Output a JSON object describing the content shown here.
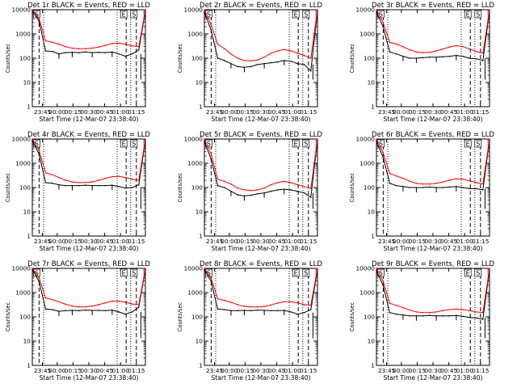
{
  "colors": {
    "events": "#000000",
    "lld": "#ff0000",
    "background": "#ffffff"
  },
  "chart_data": [
    {
      "type": "line",
      "title": "Det 1r BLACK = Events, RED = LLD",
      "xlabel": "Start Time (12-Mar-07 23:38:40)",
      "ylabel": "Counts/sec",
      "xticks": [
        "23:45",
        "00:00",
        "00:15",
        "00:30",
        "00:45",
        "01:00",
        "01:15"
      ],
      "yticks": [
        "1",
        "10",
        "100",
        "1000",
        "10000"
      ],
      "ylim": [
        1,
        10000
      ],
      "yscale": "log",
      "markers": [
        "S",
        "E",
        "S"
      ],
      "series": [
        {
          "name": "Events",
          "color": "#000000",
          "values": [
            9000,
            3500,
            200,
            190,
            150,
            170,
            175,
            170,
            180,
            170,
            175,
            170,
            180,
            150,
            120,
            150,
            220,
            9000
          ]
        },
        {
          "name": "LLD",
          "color": "#ff0000",
          "values": [
            10000,
            4500,
            520,
            460,
            380,
            300,
            260,
            245,
            245,
            260,
            290,
            340,
            400,
            420,
            380,
            320,
            300,
            10000
          ]
        }
      ]
    },
    {
      "type": "line",
      "title": "Det 2r BLACK = Events, RED = LLD",
      "xlabel": "Start Time (12-Mar-07 23:38:40)",
      "ylabel": "Counts/sec",
      "xticks": [
        "23:45",
        "00:00",
        "00:15",
        "00:30",
        "00:45",
        "01:00",
        "01:15"
      ],
      "yticks": [
        "1",
        "10",
        "100",
        "1000",
        "10000"
      ],
      "ylim": [
        1,
        10000
      ],
      "yscale": "log",
      "markers": [
        "S",
        "E",
        "S"
      ],
      "series": [
        {
          "name": "Events",
          "color": "#000000",
          "values": [
            8000,
            1500,
            100,
            80,
            60,
            45,
            42,
            45,
            55,
            60,
            65,
            70,
            80,
            75,
            60,
            55,
            30,
            9000
          ]
        },
        {
          "name": "LLD",
          "color": "#ff0000",
          "values": [
            10000,
            2500,
            380,
            250,
            150,
            100,
            80,
            78,
            85,
            110,
            160,
            200,
            230,
            200,
            160,
            130,
            100,
            10000
          ]
        }
      ]
    },
    {
      "type": "line",
      "title": "Det 3r BLACK = Events, RED = LLD",
      "xlabel": "Start Time (12-Mar-07 23:38:40)",
      "ylabel": "Counts/sec",
      "xticks": [
        "23:45",
        "00:00",
        "00:15",
        "00:30",
        "00:45",
        "01:00",
        "01:15"
      ],
      "yticks": [
        "1",
        "10",
        "100",
        "1000",
        "10000"
      ],
      "ylim": [
        1,
        10000
      ],
      "yscale": "log",
      "markers": [
        "S",
        "E",
        "S"
      ],
      "series": [
        {
          "name": "Events",
          "color": "#000000",
          "values": [
            8000,
            2000,
            180,
            150,
            120,
            100,
            100,
            105,
            110,
            110,
            115,
            120,
            130,
            120,
            100,
            95,
            80,
            9000
          ]
        },
        {
          "name": "LLD",
          "color": "#ff0000",
          "values": [
            10000,
            3000,
            450,
            380,
            300,
            220,
            180,
            170,
            175,
            200,
            240,
            290,
            330,
            300,
            240,
            190,
            160,
            10000
          ]
        }
      ]
    },
    {
      "type": "line",
      "title": "Det 4r BLACK = Events, RED = LLD",
      "xlabel": "Start Time (12-Mar-07 23:38:40)",
      "ylabel": "Counts/sec",
      "xticks": [
        "23:45",
        "00:00",
        "00:15",
        "00:30",
        "00:45",
        "01:00",
        "01:15"
      ],
      "yticks": [
        "1",
        "10",
        "100",
        "1000",
        "10000"
      ],
      "ylim": [
        1,
        10000
      ],
      "yscale": "log",
      "markers": [
        "S",
        "E",
        "S"
      ],
      "series": [
        {
          "name": "Events",
          "color": "#000000",
          "values": [
            8500,
            2500,
            160,
            150,
            130,
            120,
            120,
            120,
            125,
            120,
            120,
            120,
            125,
            110,
            95,
            100,
            130,
            9000
          ]
        },
        {
          "name": "LLD",
          "color": "#ff0000",
          "values": [
            10000,
            3500,
            400,
            340,
            260,
            200,
            170,
            160,
            160,
            170,
            200,
            240,
            280,
            290,
            260,
            220,
            200,
            10000
          ]
        }
      ]
    },
    {
      "type": "line",
      "title": "Det 5r BLACK = Events, RED = LLD",
      "xlabel": "Start Time (12-Mar-07 23:38:40)",
      "ylabel": "Counts/sec",
      "xticks": [
        "23:45",
        "00:00",
        "00:15",
        "00:30",
        "00:45",
        "01:00",
        "01:15"
      ],
      "yticks": [
        "1",
        "10",
        "100",
        "1000",
        "10000"
      ],
      "ylim": [
        1,
        10000
      ],
      "yscale": "log",
      "markers": [
        "S",
        "E",
        "S"
      ],
      "series": [
        {
          "name": "Events",
          "color": "#000000",
          "values": [
            8000,
            1500,
            120,
            100,
            70,
            50,
            45,
            48,
            55,
            60,
            70,
            80,
            85,
            80,
            70,
            60,
            40,
            9000
          ]
        },
        {
          "name": "LLD",
          "color": "#ff0000",
          "values": [
            10000,
            2500,
            220,
            180,
            140,
            95,
            80,
            75,
            80,
            95,
            130,
            160,
            180,
            160,
            130,
            110,
            90,
            10000
          ]
        }
      ]
    },
    {
      "type": "line",
      "title": "Det 6r BLACK = Events, RED = LLD",
      "xlabel": "Start Time (12-Mar-07 23:38:40)",
      "ylabel": "Counts/sec",
      "xticks": [
        "23:45",
        "00:00",
        "00:15",
        "00:30",
        "00:45",
        "01:00",
        "01:15"
      ],
      "yticks": [
        "1",
        "10",
        "100",
        "1000",
        "10000"
      ],
      "ylim": [
        1,
        10000
      ],
      "yscale": "log",
      "markers": [
        "S",
        "E",
        "S"
      ],
      "series": [
        {
          "name": "Events",
          "color": "#000000",
          "values": [
            8000,
            1800,
            150,
            120,
            110,
            100,
            100,
            100,
            105,
            100,
            100,
            105,
            110,
            100,
            90,
            90,
            80,
            9000
          ]
        },
        {
          "name": "LLD",
          "color": "#ff0000",
          "values": [
            10000,
            2800,
            380,
            300,
            240,
            180,
            150,
            140,
            140,
            150,
            170,
            200,
            230,
            220,
            190,
            160,
            140,
            10000
          ]
        }
      ]
    },
    {
      "type": "line",
      "title": "Det 7r BLACK = Events, RED = LLD",
      "xlabel": "Start Time (12-Mar-07 23:38:40)",
      "ylabel": "Counts/sec",
      "xticks": [
        "23:45",
        "00:00",
        "00:15",
        "00:30",
        "00:45",
        "01:00",
        "01:15"
      ],
      "yticks": [
        "1",
        "10",
        "100",
        "1000",
        "10000"
      ],
      "ylim": [
        1,
        10000
      ],
      "yscale": "log",
      "markers": [
        "S",
        "E",
        "S"
      ],
      "series": [
        {
          "name": "Events",
          "color": "#000000",
          "values": [
            9000,
            3000,
            210,
            200,
            170,
            180,
            185,
            180,
            190,
            185,
            185,
            180,
            190,
            160,
            130,
            160,
            250,
            9000
          ]
        },
        {
          "name": "LLD",
          "color": "#ff0000",
          "values": [
            10000,
            4200,
            600,
            520,
            420,
            330,
            280,
            260,
            260,
            280,
            320,
            380,
            440,
            450,
            400,
            340,
            320,
            10000
          ]
        }
      ]
    },
    {
      "type": "line",
      "title": "Det 8r BLACK = Events, RED = LLD",
      "xlabel": "Start Time (12-Mar-07 23:38:40)",
      "ylabel": "Counts/sec",
      "xticks": [
        "23:45",
        "00:00",
        "00:15",
        "00:30",
        "00:45",
        "01:00",
        "01:15"
      ],
      "yticks": [
        "1",
        "10",
        "100",
        "1000",
        "10000"
      ],
      "ylim": [
        1,
        10000
      ],
      "yscale": "log",
      "markers": [
        "S",
        "E",
        "S"
      ],
      "series": [
        {
          "name": "Events",
          "color": "#000000",
          "values": [
            9000,
            3000,
            210,
            200,
            180,
            180,
            185,
            180,
            190,
            185,
            180,
            180,
            185,
            160,
            130,
            150,
            200,
            9000
          ]
        },
        {
          "name": "LLD",
          "color": "#ff0000",
          "values": [
            10000,
            4000,
            560,
            480,
            400,
            320,
            270,
            255,
            255,
            270,
            310,
            370,
            420,
            420,
            380,
            320,
            300,
            10000
          ]
        }
      ]
    },
    {
      "type": "line",
      "title": "Det 9r BLACK = Events, RED = LLD",
      "xlabel": "Start Time (12-Mar-07 23:38:40)",
      "ylabel": "Counts/sec",
      "xticks": [
        "23:45",
        "00:00",
        "00:15",
        "00:30",
        "00:45",
        "01:00",
        "01:15"
      ],
      "yticks": [
        "1",
        "10",
        "100",
        "1000",
        "10000"
      ],
      "ylim": [
        1,
        10000
      ],
      "yscale": "log",
      "markers": [
        "S",
        "E",
        "S"
      ],
      "series": [
        {
          "name": "Events",
          "color": "#000000",
          "values": [
            8000,
            2000,
            150,
            130,
            120,
            110,
            110,
            110,
            115,
            110,
            110,
            110,
            115,
            105,
            95,
            90,
            80,
            9000
          ]
        },
        {
          "name": "LLD",
          "color": "#ff0000",
          "values": [
            10000,
            3000,
            360,
            300,
            240,
            190,
            160,
            150,
            150,
            160,
            180,
            200,
            210,
            200,
            180,
            160,
            150,
            10000
          ]
        }
      ]
    }
  ]
}
